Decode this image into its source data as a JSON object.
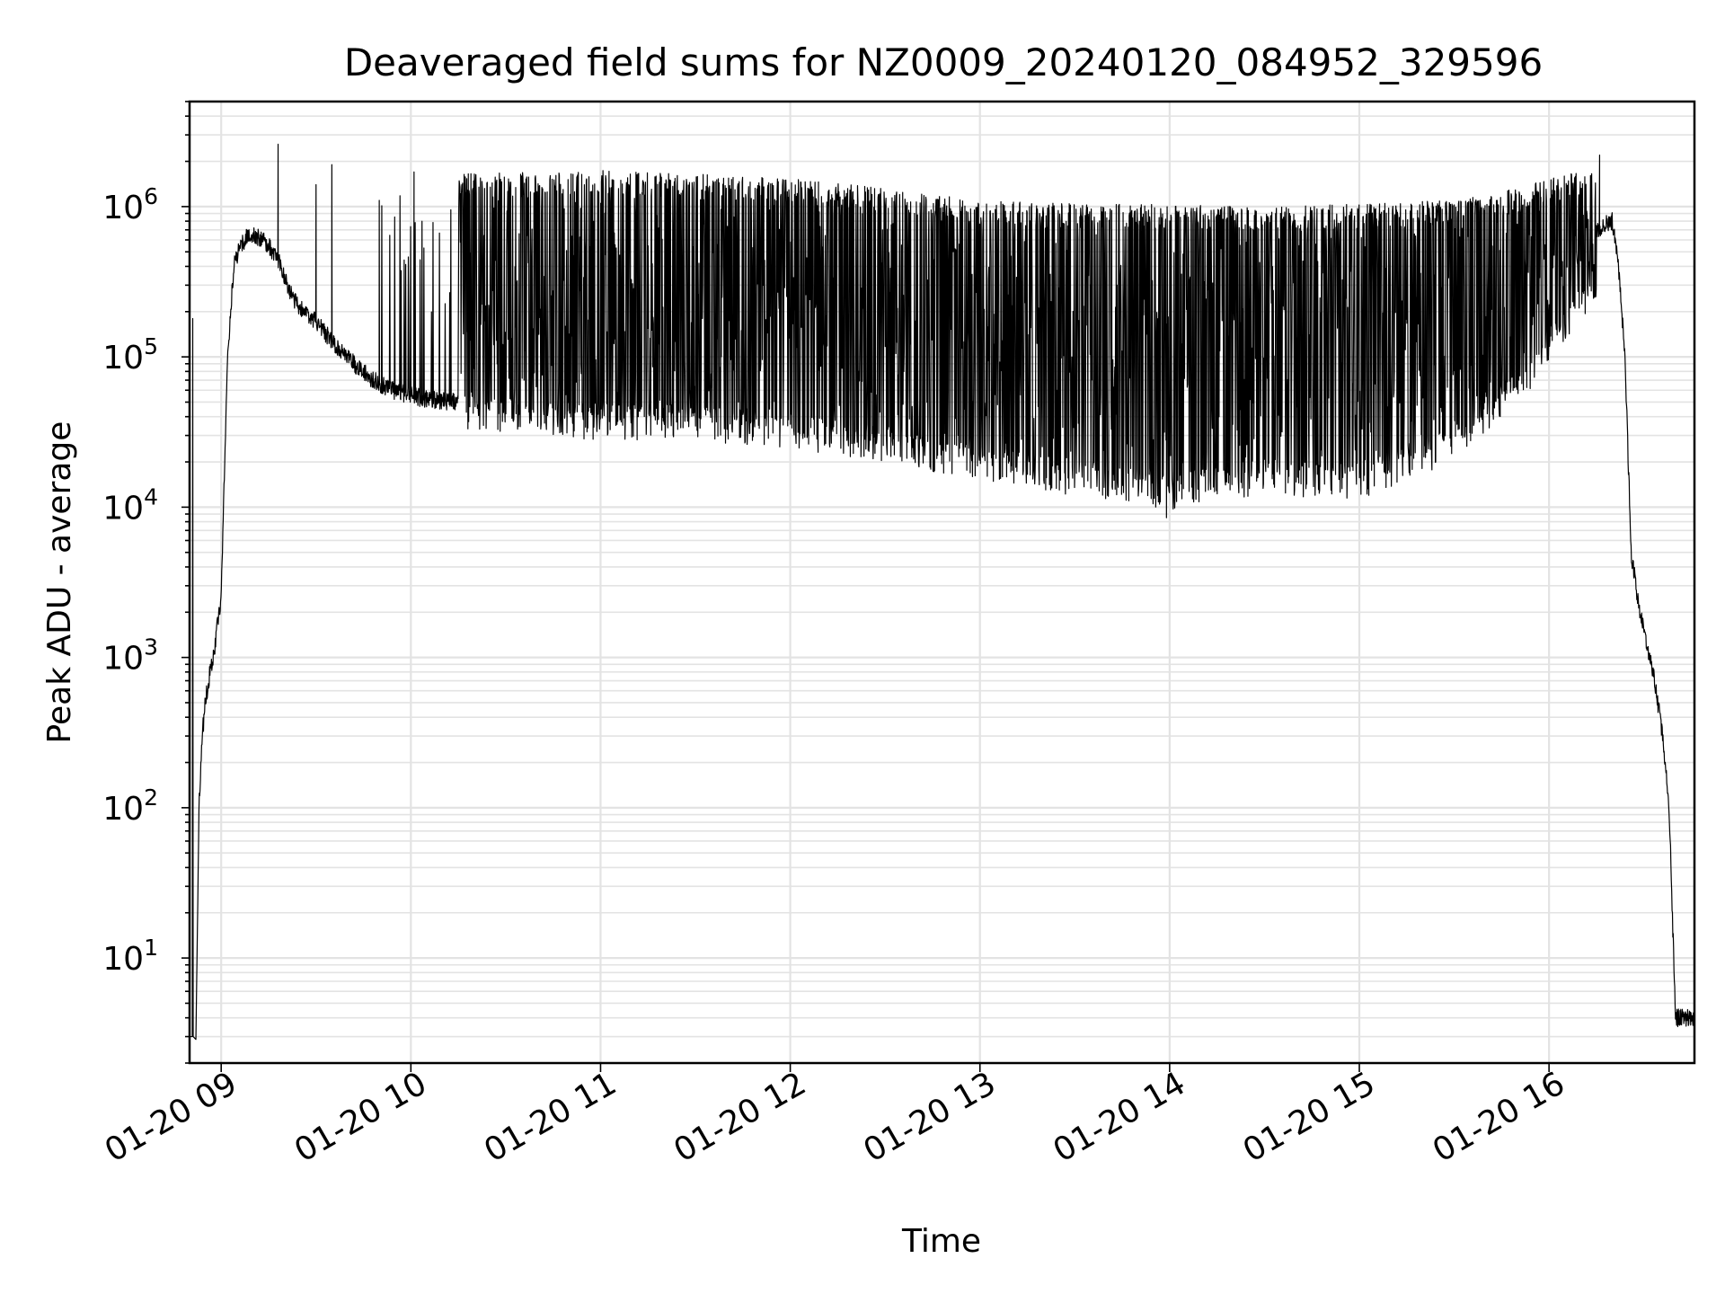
{
  "chart_data": {
    "type": "line",
    "title": "Deaveraged field sums for NZ0009_20240120_084952_329596",
    "xlabel": "Time",
    "ylabel": "Peak ADU - average",
    "yscale": "log",
    "ylim": [
      2,
      5000000
    ],
    "xlim": [
      "2024-01-20 08:50",
      "2024-01-20 16:46"
    ],
    "grid": "major and minor",
    "color": "#000000",
    "x_ticks": [
      {
        "at": "2024-01-20 09:00",
        "label": "01-20 09"
      },
      {
        "at": "2024-01-20 10:00",
        "label": "01-20 10"
      },
      {
        "at": "2024-01-20 11:00",
        "label": "01-20 11"
      },
      {
        "at": "2024-01-20 12:00",
        "label": "01-20 12"
      },
      {
        "at": "2024-01-20 13:00",
        "label": "01-20 13"
      },
      {
        "at": "2024-01-20 14:00",
        "label": "01-20 14"
      },
      {
        "at": "2024-01-20 15:00",
        "label": "01-20 15"
      },
      {
        "at": "2024-01-20 16:00",
        "label": "01-20 16"
      }
    ],
    "y_ticks": [
      {
        "at": 10,
        "base": "10",
        "exp": "1"
      },
      {
        "at": 100,
        "base": "10",
        "exp": "2"
      },
      {
        "at": 1000,
        "base": "10",
        "exp": "3"
      },
      {
        "at": 10000,
        "base": "10",
        "exp": "4"
      },
      {
        "at": 100000,
        "base": "10",
        "exp": "5"
      },
      {
        "at": 1000000,
        "base": "10",
        "exp": "6"
      }
    ],
    "series": [
      {
        "baseline": {
          "x": [
            "2024-01-20 08:52",
            "2024-01-20 08:53",
            "2024-01-20 08:54",
            "2024-01-20 08:55",
            "2024-01-20 08:56",
            "2024-01-20 08:58",
            "2024-01-20 09:00",
            "2024-01-20 09:02",
            "2024-01-20 09:04",
            "2024-01-20 09:06",
            "2024-01-20 09:08",
            "2024-01-20 09:10",
            "2024-01-20 09:12",
            "2024-01-20 09:15",
            "2024-01-20 09:18",
            "2024-01-20 09:21",
            "2024-01-20 09:24",
            "2024-01-20 09:27",
            "2024-01-20 09:30",
            "2024-01-20 09:36",
            "2024-01-20 09:42",
            "2024-01-20 09:48",
            "2024-01-20 09:54",
            "2024-01-20 10:00",
            "2024-01-20 10:06",
            "2024-01-20 10:12",
            "2024-01-20 10:18",
            "2024-01-20 10:24",
            "2024-01-20 10:30",
            "2024-01-20 10:45",
            "2024-01-20 11:00",
            "2024-01-20 11:30",
            "2024-01-20 12:00",
            "2024-01-20 12:30",
            "2024-01-20 13:00",
            "2024-01-20 13:30",
            "2024-01-20 14:00",
            "2024-01-20 14:30",
            "2024-01-20 15:00",
            "2024-01-20 15:20",
            "2024-01-20 15:40",
            "2024-01-20 15:50",
            "2024-01-20 16:00",
            "2024-01-20 16:10",
            "2024-01-20 16:17",
            "2024-01-20 16:20",
            "2024-01-20 16:22",
            "2024-01-20 16:24",
            "2024-01-20 16:26",
            "2024-01-20 16:28",
            "2024-01-20 16:30",
            "2024-01-20 16:33",
            "2024-01-20 16:36",
            "2024-01-20 16:38",
            "2024-01-20 16:39",
            "2024-01-20 16:40",
            "2024-01-20 16:46"
          ],
          "y": [
            3,
            100,
            300,
            500,
            700,
            1200,
            2500,
            100000,
            400000,
            550000,
            620000,
            650000,
            620000,
            550000,
            450000,
            300000,
            220000,
            200000,
            170000,
            120000,
            90000,
            70000,
            60000,
            55000,
            52000,
            50000,
            50000,
            52000,
            55000,
            52000,
            50000,
            52000,
            55000,
            50000,
            42000,
            40000,
            38000,
            37000,
            36000,
            40000,
            80000,
            150000,
            300000,
            500000,
            750000,
            800000,
            400000,
            100000,
            5000,
            2500,
            1500,
            800,
            300,
            100,
            20,
            4,
            4
          ]
        },
        "upper": {
          "x": [
            "2024-01-20 10:15",
            "2024-01-20 11:00",
            "2024-01-20 11:30",
            "2024-01-20 12:00",
            "2024-01-20 12:30",
            "2024-01-20 13:00",
            "2024-01-20 13:30",
            "2024-01-20 14:00",
            "2024-01-20 14:30",
            "2024-01-20 15:00",
            "2024-01-20 15:30",
            "2024-01-20 15:50",
            "2024-01-20 16:05",
            "2024-01-20 16:15"
          ],
          "y": [
            1500000,
            1600000,
            1500000,
            1400000,
            1200000,
            1000000,
            950000,
            950000,
            900000,
            950000,
            1000000,
            1200000,
            1500000,
            1700000
          ]
        },
        "lower": {
          "x": [
            "2024-01-20 10:15",
            "2024-01-20 11:00",
            "2024-01-20 11:30",
            "2024-01-20 12:00",
            "2024-01-20 12:30",
            "2024-01-20 13:00",
            "2024-01-20 13:30",
            "2024-01-20 14:00",
            "2024-01-20 14:30",
            "2024-01-20 15:00",
            "2024-01-20 15:30",
            "2024-01-20 15:50",
            "2024-01-20 16:05",
            "2024-01-20 16:15"
          ],
          "y": [
            40000,
            35000,
            35000,
            30000,
            25000,
            18000,
            15000,
            12000,
            15000,
            14000,
            25000,
            60000,
            150000,
            300000
          ]
        },
        "spikes": [
          {
            "x": "2024-01-20 08:50",
            "y": 3
          },
          {
            "x": "2024-01-20 08:51",
            "y": 180000
          },
          {
            "x": "2024-01-20 09:18",
            "y": 2600000
          },
          {
            "x": "2024-01-20 09:30",
            "y": 1400000
          },
          {
            "x": "2024-01-20 09:35",
            "y": 1900000
          },
          {
            "x": "2024-01-20 09:50",
            "y": 1100000
          },
          {
            "x": "2024-01-20 10:01",
            "y": 1700000
          },
          {
            "x": "2024-01-20 13:59",
            "y": 8500
          },
          {
            "x": "2024-01-20 15:03",
            "y": 12000
          },
          {
            "x": "2024-01-20 16:16",
            "y": 2200000
          }
        ]
      }
    ]
  }
}
